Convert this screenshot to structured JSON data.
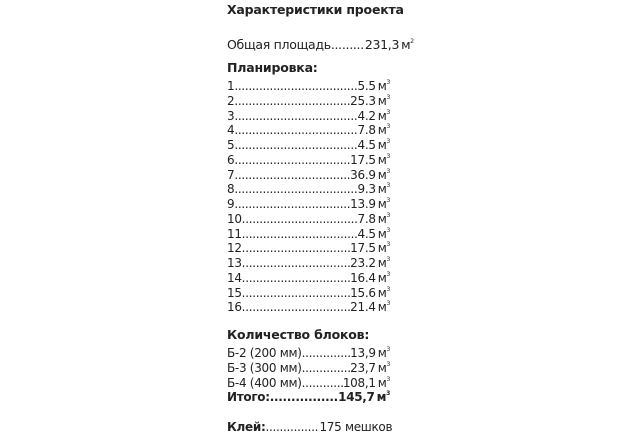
{
  "title": "Характеристики проекта",
  "total_area": {
    "label": "Общая площадь",
    "value": "231,3",
    "unit": "м",
    "power": "2"
  },
  "layout": {
    "heading": "Планировка:",
    "unit": "м",
    "power": "3",
    "rooms": [
      {
        "n": "1.",
        "v": "5.5"
      },
      {
        "n": "2.",
        "v": "25.3"
      },
      {
        "n": "3.",
        "v": "4.2"
      },
      {
        "n": "4.",
        "v": "7.8"
      },
      {
        "n": "5.",
        "v": "4.5"
      },
      {
        "n": "6.",
        "v": "17.5"
      },
      {
        "n": "7.",
        "v": "36.9"
      },
      {
        "n": "8.",
        "v": "9.3"
      },
      {
        "n": "9.",
        "v": "13.9"
      },
      {
        "n": "10.",
        "v": "7.8"
      },
      {
        "n": "11.",
        "v": "4.5"
      },
      {
        "n": "12.",
        "v": "17.5"
      },
      {
        "n": "13.",
        "v": "23.2"
      },
      {
        "n": "14.",
        "v": "16.4"
      },
      {
        "n": "15.",
        "v": "15.6"
      },
      {
        "n": "16.",
        "v": "21.4"
      }
    ]
  },
  "blocks": {
    "heading": "Количество блоков:",
    "unit": "м",
    "power": "3",
    "items": [
      {
        "label": "Б-2 (200 мм)",
        "v": "13,9"
      },
      {
        "label": "Б-3 (300 мм)",
        "v": "23,7"
      },
      {
        "label": "Б-4 (400 мм)",
        "v": "108,1"
      }
    ],
    "total": {
      "label": "Итого:",
      "v": "145,7"
    }
  },
  "glue": {
    "label": "Клей:",
    "v": "175 мешков"
  }
}
